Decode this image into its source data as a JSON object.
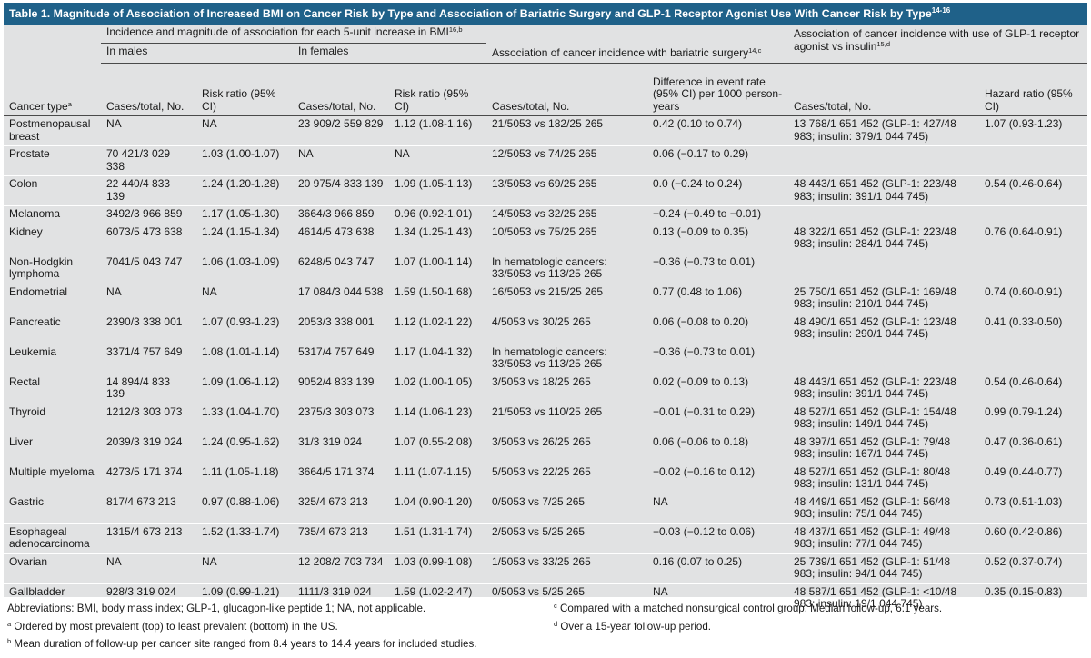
{
  "title": "Table 1. Magnitude of Association of Increased BMI on Cancer Risk by Type and Association of Bariatric Surgery and GLP-1 Receptor Agonist Use With Cancer Risk by Type",
  "title_refs": "14-16",
  "header": {
    "bmi_group": "Incidence and magnitude of association for each 5-unit increase in BMI",
    "bmi_group_refs": "16,b",
    "males": "In males",
    "females": "In females",
    "bariatric_group": "Association of cancer incidence with bariatric surgery",
    "bariatric_group_refs": "14,c",
    "glp1_group": "Association of cancer incidence with use of GLP-1 receptor agonist vs insulin",
    "glp1_group_refs": "15,d",
    "cancer_type": "Cancer type",
    "cancer_type_ref": "a",
    "cases_total_m": "Cases/total, No.",
    "risk_ratio_m": "Risk ratio (95% CI)",
    "cases_total_f": "Cases/total, No.",
    "risk_ratio_f": "Risk ratio (95% CI)",
    "cases_total_b": "Cases/total, No.",
    "diff_event": "Difference in event rate (95% CI) per 1000 person-years",
    "cases_total_g": "Cases/total, No.",
    "hazard_ratio": "Hazard ratio (95% CI)"
  },
  "rows": [
    {
      "type": "Postmenopausal breast",
      "m_cases": "NA",
      "m_rr": "NA",
      "f_cases": "23 909/2 559 829",
      "f_rr": "1.12 (1.08-1.16)",
      "b_cases": "21/5053 vs 182/25 265",
      "b_diff": "0.42 (0.10 to 0.74)",
      "g_cases": "13 768/1 651 452 (GLP-1: 427/48 983; insulin: 379/1 044 745)",
      "g_hr": "1.07 (0.93-1.23)"
    },
    {
      "type": "Prostate",
      "m_cases": "70 421/3 029 338",
      "m_rr": "1.03 (1.00-1.07)",
      "f_cases": "NA",
      "f_rr": "NA",
      "b_cases": "12/5053 vs 74/25 265",
      "b_diff": "0.06 (−0.17 to 0.29)",
      "g_cases": "",
      "g_hr": ""
    },
    {
      "type": "Colon",
      "m_cases": "22 440/4 833 139",
      "m_rr": "1.24 (1.20-1.28)",
      "f_cases": "20 975/4 833 139",
      "f_rr": "1.09 (1.05-1.13)",
      "b_cases": "13/5053 vs 69/25 265",
      "b_diff": "0.0 (−0.24 to 0.24)",
      "g_cases": "48 443/1 651 452 (GLP-1: 223/48 983; insulin: 391/1 044 745)",
      "g_hr": "0.54 (0.46-0.64)"
    },
    {
      "type": "Melanoma",
      "m_cases": "3492/3 966 859",
      "m_rr": "1.17 (1.05-1.30)",
      "f_cases": "3664/3 966 859",
      "f_rr": "0.96 (0.92-1.01)",
      "b_cases": "14/5053 vs 32/25 265",
      "b_diff": "−0.24 (−0.49 to −0.01)",
      "g_cases": "",
      "g_hr": ""
    },
    {
      "type": "Kidney",
      "m_cases": "6073/5 473 638",
      "m_rr": "1.24 (1.15-1.34)",
      "f_cases": "4614/5 473 638",
      "f_rr": "1.34 (1.25-1.43)",
      "b_cases": "10/5053 vs 75/25 265",
      "b_diff": "0.13 (−0.09 to 0.35)",
      "g_cases": "48 322/1 651 452 (GLP-1: 223/48 983; insulin: 284/1 044 745)",
      "g_hr": "0.76 (0.64-0.91)"
    },
    {
      "type": "Non-Hodgkin lymphoma",
      "m_cases": "7041/5 043 747",
      "m_rr": "1.06 (1.03-1.09)",
      "f_cases": "6248/5 043 747",
      "f_rr": "1.07 (1.00-1.14)",
      "b_cases": "In hematologic cancers: 33/5053 vs 113/25 265",
      "b_diff": "−0.36 (−0.73 to 0.01)",
      "g_cases": "",
      "g_hr": ""
    },
    {
      "type": "Endometrial",
      "m_cases": "NA",
      "m_rr": "NA",
      "f_cases": "17 084/3 044 538",
      "f_rr": "1.59 (1.50-1.68)",
      "b_cases": "16/5053 vs 215/25 265",
      "b_diff": "0.77 (0.48 to 1.06)",
      "g_cases": "25 750/1 651 452 (GLP-1: 169/48 983; insulin: 210/1 044 745)",
      "g_hr": "0.74 (0.60-0.91)"
    },
    {
      "type": "Pancreatic",
      "m_cases": "2390/3 338 001",
      "m_rr": "1.07 (0.93-1.23)",
      "f_cases": "2053/3 338 001",
      "f_rr": "1.12 (1.02-1.22)",
      "b_cases": "4/5053 vs 30/25 265",
      "b_diff": "0.06 (−0.08 to 0.20)",
      "g_cases": "48 490/1 651 452 (GLP-1: 123/48 983; insulin: 290/1 044 745)",
      "g_hr": "0.41 (0.33-0.50)"
    },
    {
      "type": "Leukemia",
      "m_cases": "3371/4 757 649",
      "m_rr": "1.08 (1.01-1.14)",
      "f_cases": "5317/4 757 649",
      "f_rr": "1.17 (1.04-1.32)",
      "b_cases": "In hematologic cancers: 33/5053 vs 113/25 265",
      "b_diff": "−0.36 (−0.73 to 0.01)",
      "g_cases": "",
      "g_hr": ""
    },
    {
      "type": "Rectal",
      "m_cases": "14 894/4 833 139",
      "m_rr": "1.09 (1.06-1.12)",
      "f_cases": "9052/4 833 139",
      "f_rr": "1.02 (1.00-1.05)",
      "b_cases": "3/5053 vs 18/25 265",
      "b_diff": "0.02 (−0.09 to 0.13)",
      "g_cases": "48 443/1 651 452 (GLP-1: 223/48 983; insulin: 391/1 044 745)",
      "g_hr": "0.54 (0.46-0.64)"
    },
    {
      "type": "Thyroid",
      "m_cases": "1212/3 303 073",
      "m_rr": "1.33 (1.04-1.70)",
      "f_cases": "2375/3 303 073",
      "f_rr": "1.14 (1.06-1.23)",
      "b_cases": "21/5053 vs 110/25 265",
      "b_diff": "−0.01 (−0.31 to 0.29)",
      "g_cases": "48 527/1 651 452 (GLP-1: 154/48 983; insulin: 149/1 044 745)",
      "g_hr": "0.99 (0.79-1.24)"
    },
    {
      "type": "Liver",
      "m_cases": "2039/3 319 024",
      "m_rr": "1.24 (0.95-1.62)",
      "f_cases": "31/3 319 024",
      "f_rr": "1.07 (0.55-2.08)",
      "b_cases": "3/5053 vs 26/25 265",
      "b_diff": "0.06 (−0.06 to 0.18)",
      "g_cases": "48 397/1 651 452 (GLP-1: 79/48 983; insulin: 167/1 044 745)",
      "g_hr": "0.47 (0.36-0.61)"
    },
    {
      "type": "Multiple myeloma",
      "m_cases": "4273/5 171 374",
      "m_rr": "1.11 (1.05-1.18)",
      "f_cases": "3664/5 171 374",
      "f_rr": "1.11 (1.07-1.15)",
      "b_cases": "5/5053 vs 22/25 265",
      "b_diff": "−0.02 (−0.16 to 0.12)",
      "g_cases": "48 527/1 651 452 (GLP-1: 80/48 983; insulin: 131/1 044 745)",
      "g_hr": "0.49 (0.44-0.77)"
    },
    {
      "type": "Gastric",
      "m_cases": "817/4 673 213",
      "m_rr": "0.97 (0.88-1.06)",
      "f_cases": "325/4 673 213",
      "f_rr": "1.04 (0.90-1.20)",
      "b_cases": "0/5053 vs 7/25 265",
      "b_diff": "NA",
      "g_cases": "48 449/1 651 452 (GLP-1: 56/48 983; insulin: 75/1 044 745)",
      "g_hr": "0.73 (0.51-1.03)"
    },
    {
      "type": "Esophageal adenocarcinoma",
      "m_cases": "1315/4 673 213",
      "m_rr": "1.52 (1.33-1.74)",
      "f_cases": "735/4 673 213",
      "f_rr": "1.51 (1.31-1.74)",
      "b_cases": "2/5053 vs 5/25 265",
      "b_diff": "−0.03 (−0.12 to 0.06)",
      "g_cases": "48 437/1 651 452 (GLP-1: 49/48 983; insulin: 77/1 044 745)",
      "g_hr": "0.60 (0.42-0.86)"
    },
    {
      "type": "Ovarian",
      "m_cases": "NA",
      "m_rr": "NA",
      "f_cases": "12 208/2 703 734",
      "f_rr": "1.03 (0.99-1.08)",
      "b_cases": "1/5053 vs 33/25 265",
      "b_diff": "0.16 (0.07 to 0.25)",
      "g_cases": "25 739/1 651 452 (GLP-1: 51/48 983; insulin: 94/1 044 745)",
      "g_hr": "0.52 (0.37-0.74)"
    },
    {
      "type": "Gallbladder",
      "m_cases": "928/3 319 024",
      "m_rr": "1.09 (0.99-1.21)",
      "f_cases": "1111/3 319 024",
      "f_rr": "1.59 (1.02-2.47)",
      "b_cases": "0/5053 vs 5/25 265",
      "b_diff": "NA",
      "g_cases": "48 587/1 651 452 (GLP-1: <10/48 983; insulin: 19/1 044 745)",
      "g_hr": "0.35 (0.15-0.83)"
    }
  ],
  "footnotes": {
    "abbreviations": "Abbreviations: BMI, body mass index; GLP-1, glucagon-like peptide 1; NA, not applicable.",
    "a_mark": "a",
    "a": "Ordered by most prevalent (top) to least prevalent (bottom) in the US.",
    "b_mark": "b",
    "b": "Mean duration of follow-up per cancer site ranged from 8.4 years to 14.4 years for included studies.",
    "c_mark": "c",
    "c": "Compared with a matched nonsurgical control group. Median follow-up, 6.1 years.",
    "d_mark": "d",
    "d": "Over a 15-year follow-up period."
  },
  "colors": {
    "title_bg": "#1f6189",
    "table_bg": "#e1e2e3"
  }
}
